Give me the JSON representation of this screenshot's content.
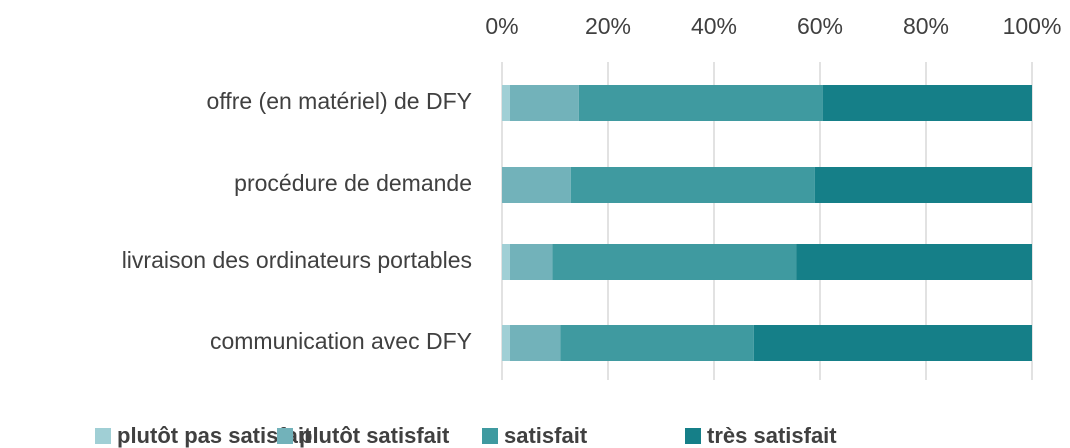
{
  "chart_data": {
    "type": "stacked_bar_horizontal",
    "categories": [
      "offre (en matériel) de DFY",
      "procédure de demande",
      "livraison des ordinateurs portables",
      "communication avec DFY"
    ],
    "series": [
      {
        "name": "plutôt pas satisfait",
        "color": "#a0cfd5",
        "values": [
          1.5,
          0,
          1.5,
          1.5
        ]
      },
      {
        "name": "plutôt satisfait",
        "color": "#72b2ba",
        "values": [
          13,
          13,
          8,
          9.5
        ]
      },
      {
        "name": "satisfait",
        "color": "#3f9aa0",
        "values": [
          46,
          46,
          46,
          36.5
        ]
      },
      {
        "name": "très satisfait",
        "color": "#157f88",
        "values": [
          39.5,
          41,
          44.5,
          52.5
        ]
      }
    ],
    "xlim": [
      0,
      100
    ],
    "xticks": [
      {
        "value": 0,
        "label": "0%"
      },
      {
        "value": 20,
        "label": "20%"
      },
      {
        "value": 40,
        "label": "40%"
      },
      {
        "value": 60,
        "label": "60%"
      },
      {
        "value": 80,
        "label": "80%"
      },
      {
        "value": 100,
        "label": "100%"
      }
    ],
    "grid": true,
    "legend": "bottom"
  }
}
